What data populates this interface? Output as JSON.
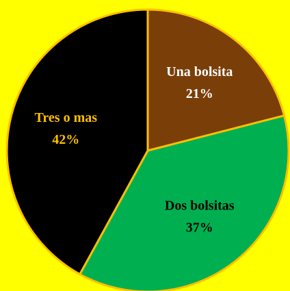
{
  "chart_data": {
    "type": "pie",
    "categories": [
      "Una bolsita",
      "Dos bolsitas",
      "Tres o mas"
    ],
    "values": [
      21,
      37,
      42
    ],
    "value_labels": [
      "21%",
      "37%",
      "42%"
    ],
    "colors": [
      "#7a3e08",
      "#00b050",
      "#000000"
    ],
    "label_colors": [
      "#ffffff",
      "#000000",
      "#ffc000"
    ],
    "edge_color": "#ffc000",
    "background": "#ffff00"
  }
}
